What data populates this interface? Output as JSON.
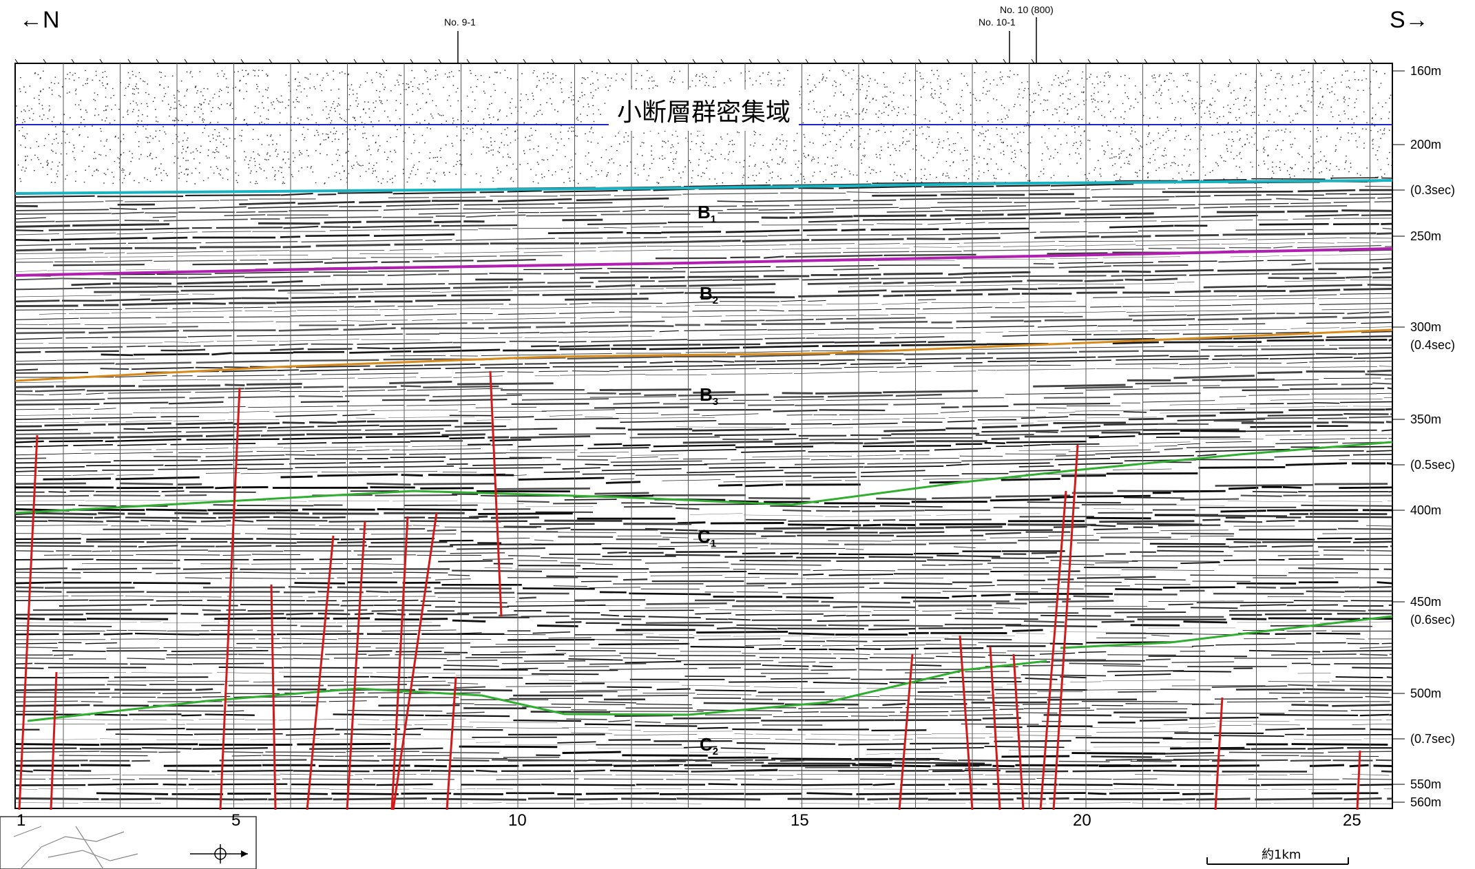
{
  "direction": {
    "left": "←N",
    "right": "S→"
  },
  "crossings": {
    "c1": "No. 9-1",
    "c2_top": "No. 10 (800)",
    "c2_bottom": "No. 10-1"
  },
  "zone_label": "小断層群密集域",
  "units": [
    {
      "key": "B1",
      "base": "B",
      "sub": "1"
    },
    {
      "key": "B2",
      "base": "B",
      "sub": "2"
    },
    {
      "key": "B3",
      "base": "B",
      "sub": "3"
    },
    {
      "key": "C1",
      "base": "C",
      "sub": "1"
    },
    {
      "key": "C2",
      "base": "C",
      "sub": "2"
    }
  ],
  "depth_labels": [
    "160m",
    "200m",
    "(0.3sec)",
    "250m",
    "300m",
    "(0.4sec)",
    "350m",
    "(0.5sec)",
    "400m",
    "450m",
    "(0.6sec)",
    "500m",
    "(0.7sec)",
    "550m",
    "560m"
  ],
  "trace_numbers": [
    "1",
    "5",
    "10",
    "15",
    "20",
    "25"
  ],
  "scale_label": "約1km",
  "colors": {
    "horizon_cyan": "#19b3c2",
    "horizon_magenta": "#b01fb0",
    "horizon_orange": "#d78a1a",
    "horizon_green": "#2fae2f",
    "zone_line": "#2222cc",
    "fault": "#d61818"
  }
}
